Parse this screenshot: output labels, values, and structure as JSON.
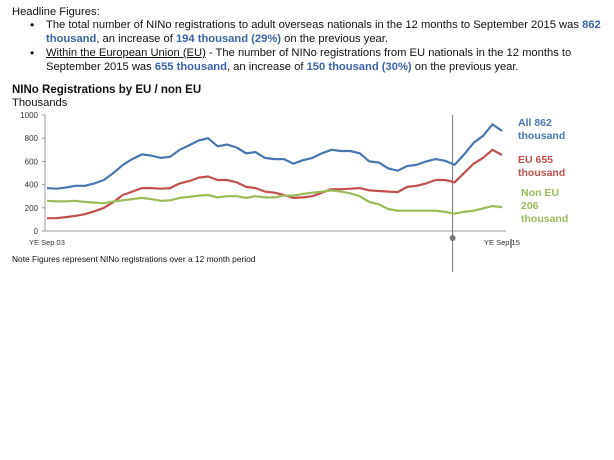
{
  "headline": {
    "title": "Headline Figures:",
    "bullet1": {
      "text_a": "The total number of NINo registrations to adult overseas nationals in the 12 months to September 2015 was ",
      "value": "862 thousand",
      "text_b": ", an increase of ",
      "increase": "194 thousand (29%)",
      "text_c": " on the previous year."
    },
    "bullet2": {
      "link": "Within the European Union (EU)",
      "text_a": " - The number of NINo registrations from EU nationals in the 12 months to September 2015 was ",
      "value": "655 thousand",
      "text_b": ", an increase of ",
      "increase": "150 thousand (30%)",
      "text_c": " on the previous year."
    }
  },
  "chart_title": "NINo Registrations by EU / non EU",
  "chart_units": "Thousands",
  "note": "Note Figures represent NINo registrations over a 12 month period",
  "colors": {
    "all": "#4a76b0",
    "eu": "#c0504d",
    "noneu": "#9bbb59",
    "axis": "#999999",
    "marker": "#777777"
  },
  "chart_data": {
    "type": "line",
    "title": "NINo Registrations by EU / non EU",
    "ylabel": "Thousands",
    "ylim": [
      0,
      1000
    ],
    "yticks": [
      "0",
      "200",
      "400",
      "600",
      "800",
      "1000"
    ],
    "xlabel_start": "YE Sep 03",
    "xlabel_end": "YE Sep 15",
    "series": [
      {
        "name": "All",
        "label_lines": [
          "All 862",
          "thousand"
        ],
        "color": "#4a76b0",
        "values": [
          370,
          365,
          375,
          390,
          390,
          410,
          440,
          500,
          570,
          620,
          660,
          650,
          630,
          640,
          700,
          740,
          780,
          800,
          730,
          745,
          720,
          670,
          680,
          630,
          620,
          620,
          580,
          610,
          630,
          670,
          700,
          690,
          690,
          670,
          600,
          590,
          540,
          520,
          560,
          570,
          600,
          620,
          605,
          570,
          660,
          760,
          820,
          920,
          862
        ]
      },
      {
        "name": "EU",
        "label_lines": [
          "EU 655",
          "thousand"
        ],
        "color": "#c0504d",
        "values": [
          110,
          110,
          120,
          130,
          145,
          170,
          200,
          250,
          310,
          340,
          370,
          370,
          365,
          370,
          410,
          430,
          460,
          470,
          440,
          440,
          420,
          380,
          370,
          340,
          330,
          310,
          285,
          290,
          300,
          330,
          360,
          360,
          365,
          370,
          350,
          345,
          340,
          335,
          380,
          390,
          410,
          440,
          440,
          420,
          500,
          580,
          630,
          700,
          655
        ]
      },
      {
        "name": "Non EU",
        "label_lines": [
          "Non EU",
          "206",
          "thousand"
        ],
        "color": "#9bbb59",
        "values": [
          260,
          255,
          255,
          260,
          250,
          245,
          240,
          255,
          265,
          275,
          285,
          275,
          260,
          265,
          285,
          295,
          305,
          310,
          290,
          300,
          300,
          285,
          300,
          290,
          290,
          305,
          305,
          320,
          330,
          340,
          350,
          340,
          325,
          300,
          250,
          230,
          190,
          175,
          175,
          175,
          175,
          175,
          165,
          150,
          165,
          175,
          195,
          215,
          206
        ]
      }
    ],
    "marker_index": 43
  }
}
